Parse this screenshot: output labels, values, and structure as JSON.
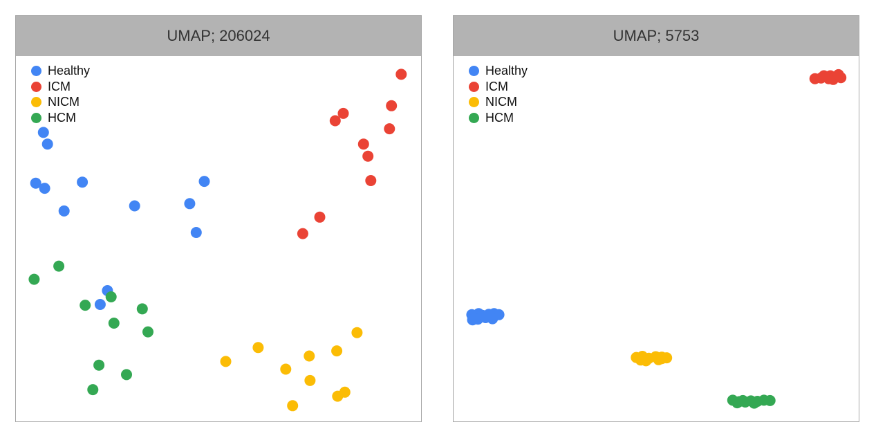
{
  "colors": {
    "Healthy": "#4285f4",
    "ICM": "#ea4335",
    "NICM": "#fbbc05",
    "HCM": "#34a853"
  },
  "panels": [
    {
      "title": "UMAP; 206024"
    },
    {
      "title": "UMAP; 5753"
    }
  ],
  "chart_data": [
    {
      "type": "scatter",
      "title": "UMAP; 206024",
      "xlabel": "",
      "ylabel": "",
      "legend": "top-left",
      "grid": false,
      "xlim": [
        0,
        100
      ],
      "ylim": [
        0,
        100
      ],
      "series": [
        {
          "name": "Healthy",
          "points": [
            [
              6.8,
              79.1
            ],
            [
              7.8,
              75.9
            ],
            [
              4.9,
              65.2
            ],
            [
              7.1,
              63.8
            ],
            [
              16.4,
              65.5
            ],
            [
              11.9,
              57.6
            ],
            [
              29.3,
              59.0
            ],
            [
              42.9,
              59.6
            ],
            [
              46.5,
              65.7
            ],
            [
              44.5,
              51.7
            ],
            [
              22.6,
              35.8
            ],
            [
              20.8,
              32.0
            ]
          ]
        },
        {
          "name": "ICM",
          "points": [
            [
              95.1,
              95.0
            ],
            [
              92.7,
              86.4
            ],
            [
              80.8,
              84.3
            ],
            [
              78.8,
              82.3
            ],
            [
              92.2,
              80.1
            ],
            [
              85.8,
              75.9
            ],
            [
              86.9,
              72.6
            ],
            [
              87.6,
              65.9
            ],
            [
              75.0,
              55.9
            ],
            [
              70.8,
              51.4
            ]
          ]
        },
        {
          "name": "NICM",
          "points": [
            [
              84.2,
              24.3
            ],
            [
              59.8,
              20.2
            ],
            [
              79.2,
              19.3
            ],
            [
              51.8,
              16.4
            ],
            [
              72.4,
              17.9
            ],
            [
              66.6,
              14.3
            ],
            [
              72.6,
              11.2
            ],
            [
              81.2,
              8.0
            ],
            [
              79.4,
              6.9
            ],
            [
              68.3,
              4.3
            ]
          ]
        },
        {
          "name": "HCM",
          "points": [
            [
              10.6,
              42.5
            ],
            [
              4.5,
              38.9
            ],
            [
              23.5,
              34.1
            ],
            [
              17.1,
              31.8
            ],
            [
              31.2,
              30.8
            ],
            [
              24.2,
              26.9
            ],
            [
              32.6,
              24.5
            ],
            [
              20.5,
              15.4
            ],
            [
              27.3,
              12.8
            ],
            [
              19.0,
              8.7
            ]
          ]
        }
      ]
    },
    {
      "type": "scatter",
      "title": "UMAP; 5753",
      "xlabel": "",
      "ylabel": "",
      "legend": "top-left",
      "grid": false,
      "xlim": [
        0,
        100
      ],
      "ylim": [
        0,
        100
      ],
      "series": [
        {
          "name": "Healthy",
          "points": [
            [
              4.5,
              29.2
            ],
            [
              6.2,
              29.5
            ],
            [
              7.2,
              29.0
            ],
            [
              8.7,
              29.3
            ],
            [
              10.0,
              29.5
            ],
            [
              11.2,
              29.2
            ],
            [
              4.7,
              27.8
            ],
            [
              6.0,
              28.0
            ],
            [
              9.6,
              28.1
            ],
            [
              7.9,
              28.4
            ]
          ]
        },
        {
          "name": "ICM",
          "points": [
            [
              89.2,
              93.8
            ],
            [
              90.7,
              94.0
            ],
            [
              91.9,
              94.3
            ],
            [
              93.0,
              94.6
            ],
            [
              94.4,
              94.3
            ],
            [
              95.6,
              94.1
            ],
            [
              93.7,
              93.6
            ],
            [
              92.6,
              93.8
            ],
            [
              95.0,
              94.9
            ],
            [
              91.4,
              94.6
            ]
          ]
        },
        {
          "name": "NICM",
          "points": [
            [
              45.1,
              17.5
            ],
            [
              46.6,
              17.8
            ],
            [
              48.2,
              17.3
            ],
            [
              49.9,
              17.7
            ],
            [
              51.4,
              17.6
            ],
            [
              52.6,
              17.4
            ],
            [
              46.2,
              16.8
            ],
            [
              50.6,
              16.9
            ],
            [
              47.5,
              16.6
            ],
            [
              51.4,
              17.2
            ]
          ]
        },
        {
          "name": "HCM",
          "points": [
            [
              68.9,
              5.8
            ],
            [
              70.5,
              5.4
            ],
            [
              72.0,
              5.3
            ],
            [
              73.4,
              5.6
            ],
            [
              75.0,
              5.5
            ],
            [
              76.6,
              5.8
            ],
            [
              70.0,
              5.1
            ],
            [
              74.2,
              5.0
            ],
            [
              78.1,
              5.7
            ],
            [
              71.4,
              5.7
            ]
          ]
        }
      ]
    }
  ]
}
